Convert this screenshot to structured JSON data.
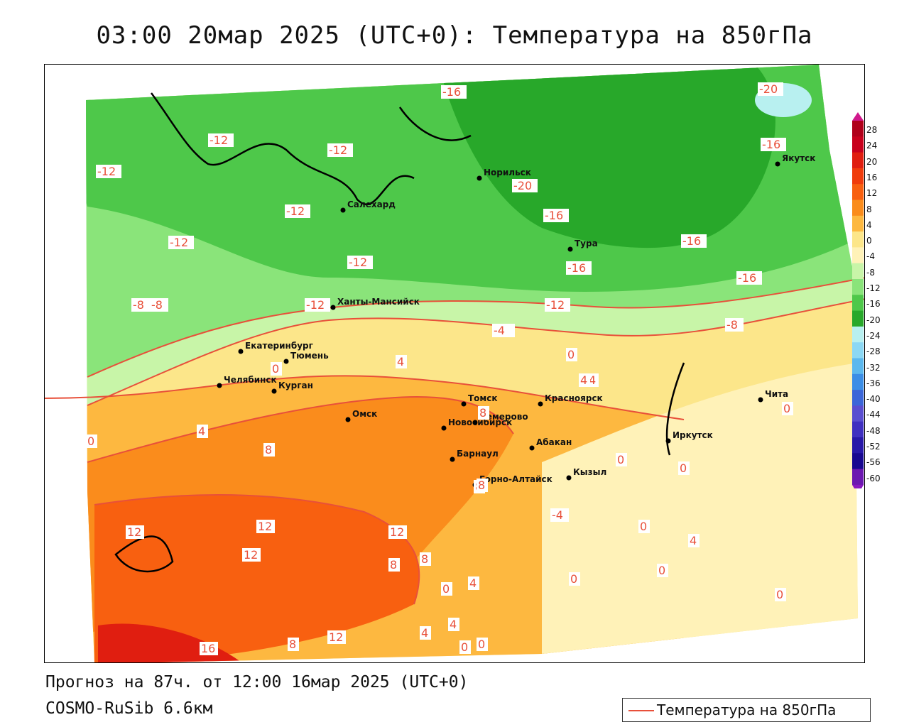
{
  "title": "03:00 20мар 2025 (UTC+0): Температура на 850гПа",
  "footer": {
    "forecast": "Прогноз на 87ч. от 12:00 16мар 2025 (UTC+0)",
    "model": "COSMO-RuSib 6.6км"
  },
  "legend": {
    "label": "Температура на 850гПа",
    "line_color": "#e8503a"
  },
  "colorscale": {
    "labels": [
      "28",
      "24",
      "20",
      "16",
      "12",
      "8",
      "4",
      "0",
      "-4",
      "-8",
      "-12",
      "-16",
      "-20",
      "-24",
      "-28",
      "-32",
      "-36",
      "-40",
      "-44",
      "-48",
      "-52",
      "-56",
      "-60"
    ],
    "colors": [
      "#b0001a",
      "#c8001c",
      "#e01e10",
      "#f03c0c",
      "#f86010",
      "#fa8c1c",
      "#fdb840",
      "#fce68a",
      "#fff2b8",
      "#c8f5a8",
      "#8ae47a",
      "#4ec84a",
      "#28a82a",
      "#b8f0f0",
      "#8cd8f4",
      "#5cb8ee",
      "#3c8ee6",
      "#3c66d8",
      "#5a4ed0",
      "#4030c0",
      "#2818a8",
      "#180890",
      "#6c18b0"
    ]
  },
  "cities": [
    {
      "name": "Салехард"
    },
    {
      "name": "Норильск"
    },
    {
      "name": "Якутск"
    },
    {
      "name": "Тура"
    },
    {
      "name": "Ханты-Мансийск"
    },
    {
      "name": "Екатеринбург"
    },
    {
      "name": "Тюмень"
    },
    {
      "name": "Челябинск"
    },
    {
      "name": "Курган"
    },
    {
      "name": "Омск"
    },
    {
      "name": "Новосибирск"
    },
    {
      "name": "Томск"
    },
    {
      "name": "Кемерово"
    },
    {
      "name": "Красноярск"
    },
    {
      "name": "Барнаул"
    },
    {
      "name": "Абакан"
    },
    {
      "name": "Горно-Алтайск"
    },
    {
      "name": "Кызыл"
    },
    {
      "name": "Иркутск"
    },
    {
      "name": "Чита"
    }
  ],
  "isotherm_labels": [
    "-16",
    "-20",
    "-12",
    "-12",
    "-12",
    "-12",
    "-12",
    "-12",
    "-8",
    "-8",
    "-4",
    "-8",
    "0",
    "4",
    "4",
    "0",
    "8",
    "8",
    "8",
    "12",
    "12",
    "12",
    "12",
    "16",
    "12",
    "8",
    "8",
    "8",
    "-16",
    "-20",
    "-16",
    "-16",
    "-16",
    "-16",
    "-12",
    "-12",
    "-8",
    "-4",
    "0",
    "0",
    "4",
    "4",
    "0",
    "0",
    "-4",
    "0",
    "0",
    "4",
    "0",
    "0",
    "0",
    "4",
    "0",
    "4",
    "4",
    "0",
    "0",
    "8"
  ]
}
